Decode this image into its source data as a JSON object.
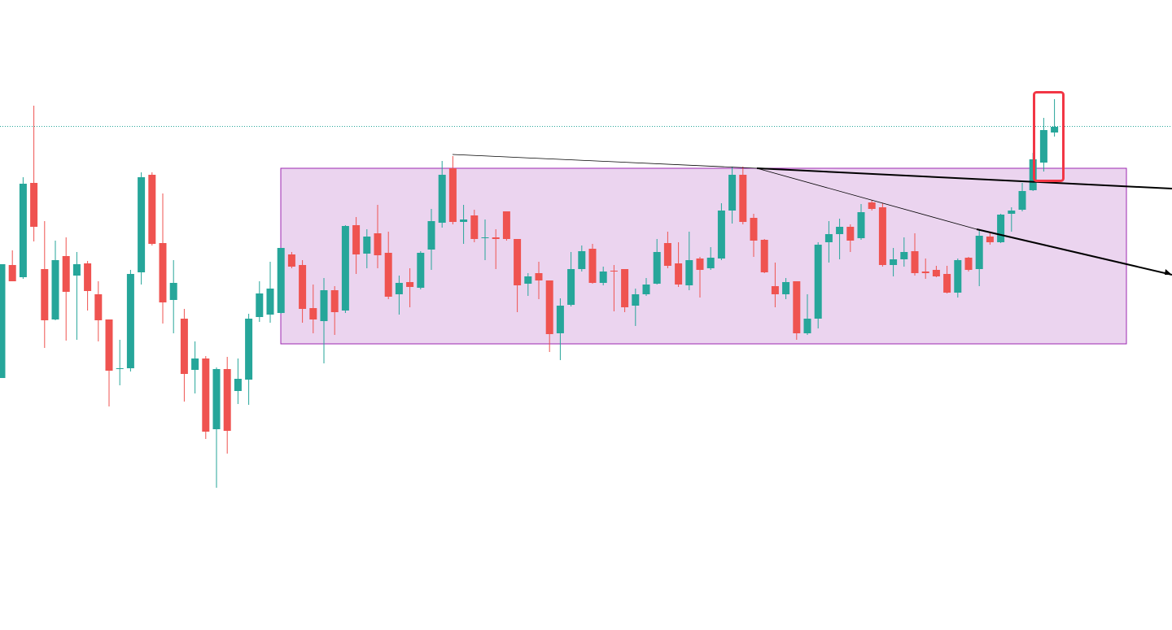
{
  "chart_data": {
    "type": "candlestick",
    "up_color": "#26a69a",
    "down_color": "#ef5350",
    "ylim": [
      0,
      775
    ],
    "open": [
      310,
      449,
      434,
      550,
      444,
      382,
      460,
      436,
      451,
      413,
      382,
      321,
      322,
      440,
      560,
      476,
      406,
      383,
      320,
      334,
      247,
      321,
      294,
      308,
      385,
      388,
      390,
      462,
      449,
      396,
      380,
      418,
      393,
      498,
      463,
      488,
      464,
      413,
      428,
      421,
      468,
      501,
      568,
      502,
      510,
      482,
      483,
      515,
      481,
      426,
      439,
      430,
      365,
      400,
      444,
      469,
      427,
      442,
      444,
      399,
      413,
      426,
      476,
      451,
      424,
      457,
      445,
      457,
      516,
      560,
      507,
      480,
      423,
      413,
      429,
      365,
      383,
      477,
      487,
      496,
      482,
      526,
      520,
      449,
      456,
      466,
      441,
      443,
      438,
      415,
      458,
      444,
      484,
      477,
      512,
      517,
      541,
      575,
      612
    ],
    "high": [
      450,
      467,
      557,
      645,
      503,
      479,
      483,
      465,
      454,
      429,
      382,
      357,
      443,
      563,
      563,
      537,
      455,
      395,
      355,
      337,
      323,
      336,
      334,
      389,
      429,
      453,
      470,
      465,
      455,
      425,
      433,
      423,
      498,
      508,
      493,
      523,
      490,
      436,
      445,
      466,
      518,
      577,
      583,
      523,
      517,
      505,
      493,
      515,
      481,
      439,
      453,
      430,
      408,
      465,
      473,
      475,
      447,
      449,
      444,
      420,
      433,
      481,
      490,
      477,
      490,
      459,
      471,
      525,
      570,
      570,
      512,
      481,
      452,
      433,
      429,
      413,
      477,
      503,
      506,
      499,
      524,
      529,
      525,
      470,
      483,
      488,
      457,
      448,
      448,
      457,
      459,
      492,
      490,
      512,
      520,
      550,
      587,
      630,
      653
    ],
    "low": [
      310,
      429,
      432,
      478,
      347,
      381,
      356,
      357,
      393,
      355,
      275,
      301,
      318,
      425,
      473,
      377,
      365,
      281,
      291,
      235,
      175,
      217,
      278,
      277,
      379,
      378,
      389,
      445,
      378,
      365,
      328,
      363,
      390,
      438,
      445,
      445,
      407,
      388,
      397,
      419,
      443,
      495,
      499,
      475,
      477,
      455,
      444,
      479,
      391,
      411,
      407,
      342,
      332,
      398,
      441,
      426,
      424,
      392,
      391,
      374,
      411,
      425,
      445,
      422,
      418,
      409,
      443,
      455,
      500,
      499,
      459,
      439,
      397,
      407,
      357,
      363,
      371,
      452,
      456,
      465,
      480,
      516,
      447,
      435,
      447,
      436,
      432,
      434,
      414,
      409,
      441,
      423,
      474,
      476,
      490,
      515,
      540,
      564,
      607
    ],
    "close": [
      450,
      429,
      549,
      496,
      381,
      455,
      416,
      450,
      417,
      381,
      319,
      322,
      438,
      557,
      475,
      403,
      427,
      315,
      334,
      244,
      321,
      245,
      309,
      383,
      414,
      420,
      470,
      447,
      395,
      382,
      418,
      391,
      497,
      462,
      484,
      461,
      410,
      427,
      422,
      464,
      503,
      560,
      502,
      505,
      481,
      483,
      481,
      481,
      424,
      435,
      430,
      364,
      399,
      444,
      466,
      427,
      441,
      441,
      397,
      413,
      425,
      465,
      448,
      425,
      455,
      443,
      458,
      516,
      560,
      502,
      479,
      440,
      413,
      428,
      365,
      383,
      474,
      487,
      496,
      479,
      514,
      518,
      449,
      456,
      465,
      439,
      439,
      435,
      415,
      455,
      443,
      485,
      477,
      511,
      516,
      540,
      579,
      615,
      619
    ]
  }
}
